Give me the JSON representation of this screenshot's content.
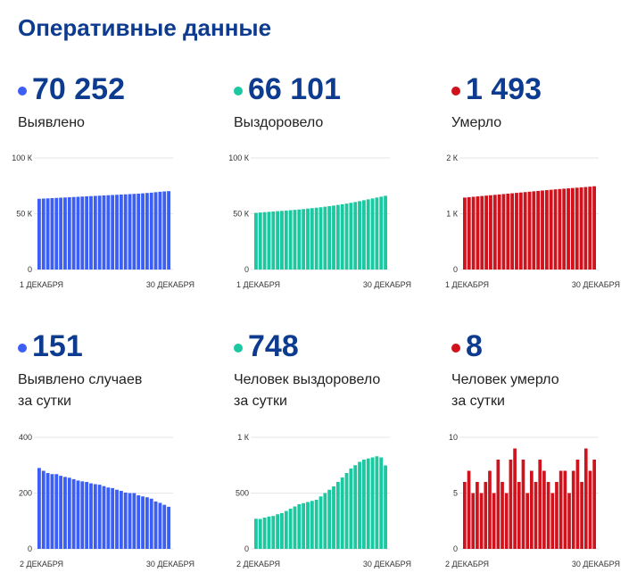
{
  "title": "Оперативные данные",
  "colors": {
    "blue": "#3b5ef5",
    "green": "#1bc8a0",
    "red": "#d0121c",
    "title": "#0d3b8f"
  },
  "stats": [
    {
      "value": "70 252",
      "label1": "Выявлено",
      "label2": ""
    },
    {
      "value": "66 101",
      "label1": "Выздоровело",
      "label2": ""
    },
    {
      "value": "1 493",
      "label1": "Умерло",
      "label2": ""
    },
    {
      "value": "151",
      "label1": "Выявлено случаев",
      "label2": "за сутки"
    },
    {
      "value": "748",
      "label1": "Человек выздоровело",
      "label2": "за сутки"
    },
    {
      "value": "8",
      "label1": "Человек умерло",
      "label2": "за сутки"
    }
  ],
  "chart_data": [
    {
      "type": "bar",
      "series_color": "blue",
      "ylim": [
        0,
        100000
      ],
      "yticks": [
        {
          "v": 100000,
          "label": "100 К"
        },
        {
          "v": 50000,
          "label": "50 К"
        },
        {
          "v": 0,
          "label": "0"
        }
      ],
      "xlabel_start": "1 ДЕКАБРЯ",
      "xlabel_end": "30 ДЕКАБРЯ",
      "values": [
        63400,
        63600,
        63800,
        64000,
        64200,
        64400,
        64600,
        64800,
        65000,
        65200,
        65400,
        65600,
        65800,
        66000,
        66200,
        66400,
        66600,
        66800,
        67000,
        67200,
        67400,
        67600,
        67800,
        68000,
        68300,
        68600,
        68900,
        69300,
        69700,
        70000,
        70252
      ]
    },
    {
      "type": "bar",
      "series_color": "green",
      "ylim": [
        0,
        100000
      ],
      "yticks": [
        {
          "v": 100000,
          "label": "100 К"
        },
        {
          "v": 50000,
          "label": "50 К"
        },
        {
          "v": 0,
          "label": "0"
        }
      ],
      "xlabel_start": "1 ДЕКАБРЯ",
      "xlabel_end": "30 ДЕКАБРЯ",
      "values": [
        50800,
        51100,
        51400,
        51700,
        52000,
        52300,
        52600,
        52900,
        53200,
        53500,
        53800,
        54200,
        54600,
        55000,
        55400,
        55800,
        56300,
        56800,
        57300,
        57900,
        58500,
        59100,
        59800,
        60500,
        61300,
        62100,
        62900,
        63700,
        64500,
        65300,
        66101
      ]
    },
    {
      "type": "bar",
      "series_color": "red",
      "ylim": [
        0,
        2000
      ],
      "yticks": [
        {
          "v": 2000,
          "label": "2 К"
        },
        {
          "v": 1000,
          "label": "1 К"
        },
        {
          "v": 0,
          "label": "0"
        }
      ],
      "xlabel_start": "1 ДЕКАБРЯ",
      "xlabel_end": "30 ДЕКАБРЯ",
      "values": [
        1290,
        1297,
        1304,
        1311,
        1318,
        1325,
        1332,
        1339,
        1346,
        1353,
        1360,
        1367,
        1374,
        1381,
        1388,
        1395,
        1402,
        1409,
        1416,
        1423,
        1430,
        1437,
        1443,
        1449,
        1455,
        1461,
        1467,
        1473,
        1479,
        1485,
        1493
      ]
    },
    {
      "type": "bar",
      "series_color": "blue",
      "ylim": [
        0,
        400
      ],
      "yticks": [
        {
          "v": 400,
          "label": "400"
        },
        {
          "v": 200,
          "label": "200"
        },
        {
          "v": 0,
          "label": "0"
        }
      ],
      "xlabel_start": "2 ДЕКАБРЯ",
      "xlabel_end": "30 ДЕКАБРЯ",
      "values": [
        290,
        280,
        272,
        268,
        268,
        262,
        258,
        255,
        250,
        245,
        242,
        240,
        235,
        232,
        230,
        225,
        220,
        218,
        212,
        208,
        202,
        200,
        200,
        192,
        188,
        185,
        180,
        170,
        165,
        158,
        151
      ]
    },
    {
      "type": "bar",
      "series_color": "green",
      "ylim": [
        0,
        1000
      ],
      "yticks": [
        {
          "v": 1000,
          "label": "1 К"
        },
        {
          "v": 500,
          "label": "500"
        },
        {
          "v": 0,
          "label": "0"
        }
      ],
      "xlabel_start": "2 ДЕКАБРЯ",
      "xlabel_end": "30 ДЕКАБРЯ",
      "values": [
        270,
        268,
        280,
        290,
        295,
        310,
        320,
        340,
        360,
        380,
        400,
        410,
        420,
        430,
        440,
        470,
        500,
        530,
        560,
        600,
        640,
        680,
        720,
        750,
        780,
        800,
        810,
        820,
        830,
        820,
        748
      ]
    },
    {
      "type": "bar",
      "series_color": "red",
      "ylim": [
        0,
        10
      ],
      "yticks": [
        {
          "v": 10,
          "label": "10"
        },
        {
          "v": 5,
          "label": "5"
        },
        {
          "v": 0,
          "label": "0"
        }
      ],
      "xlabel_start": "2 ДЕКАБРЯ",
      "xlabel_end": "30 ДЕКАБРЯ",
      "values": [
        6,
        7,
        5,
        6,
        5,
        6,
        7,
        5,
        8,
        6,
        5,
        8,
        9,
        6,
        8,
        5,
        7,
        6,
        8,
        7,
        6,
        5,
        6,
        7,
        7,
        5,
        7,
        8,
        6,
        9,
        7,
        8
      ]
    }
  ]
}
